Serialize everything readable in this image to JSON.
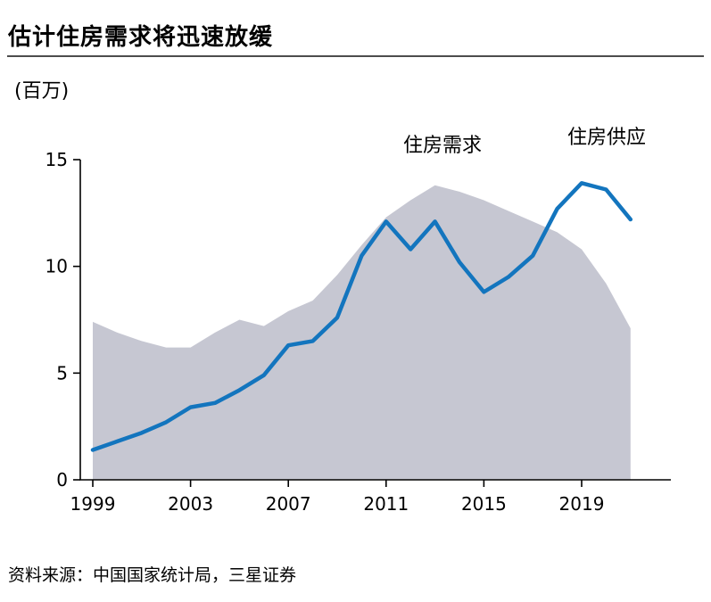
{
  "header": {
    "title": "估计住房需求将迅速放缓"
  },
  "chart": {
    "unit_label": "(百万)",
    "series_labels": {
      "demand": "住房需求",
      "supply": "住房供应"
    }
  },
  "footer": {
    "source": "资料来源：中国国家统计局，三星证券"
  },
  "chart_data": {
    "type": "area+line",
    "title": "估计住房需求将迅速放缓",
    "ylabel": "(百万)",
    "x": [
      1999,
      2000,
      2001,
      2002,
      2003,
      2004,
      2005,
      2006,
      2007,
      2008,
      2009,
      2010,
      2011,
      2012,
      2013,
      2014,
      2015,
      2016,
      2017,
      2018,
      2019,
      2020,
      2021
    ],
    "series": [
      {
        "name": "住房需求",
        "type": "area",
        "color": "#c6c7d2",
        "values": [
          7.4,
          6.9,
          6.5,
          6.2,
          6.2,
          6.9,
          7.5,
          7.2,
          7.9,
          8.4,
          9.6,
          11.0,
          12.3,
          13.1,
          13.8,
          13.5,
          13.1,
          12.6,
          12.1,
          11.6,
          10.8,
          9.2,
          7.1
        ]
      },
      {
        "name": "住房供应",
        "type": "line",
        "color": "#1375be",
        "values": [
          1.4,
          1.8,
          2.2,
          2.7,
          3.4,
          3.6,
          4.2,
          4.9,
          6.3,
          6.5,
          7.6,
          10.5,
          12.1,
          10.8,
          12.1,
          10.2,
          8.8,
          9.5,
          10.5,
          12.7,
          13.9,
          13.6,
          12.2
        ]
      }
    ],
    "ylim": [
      0,
      15
    ],
    "yticks": [
      0,
      5,
      10,
      15
    ],
    "xticks": [
      1999,
      2003,
      2007,
      2011,
      2015,
      2019
    ],
    "grid": false,
    "legend_position": "inline-annotations"
  }
}
